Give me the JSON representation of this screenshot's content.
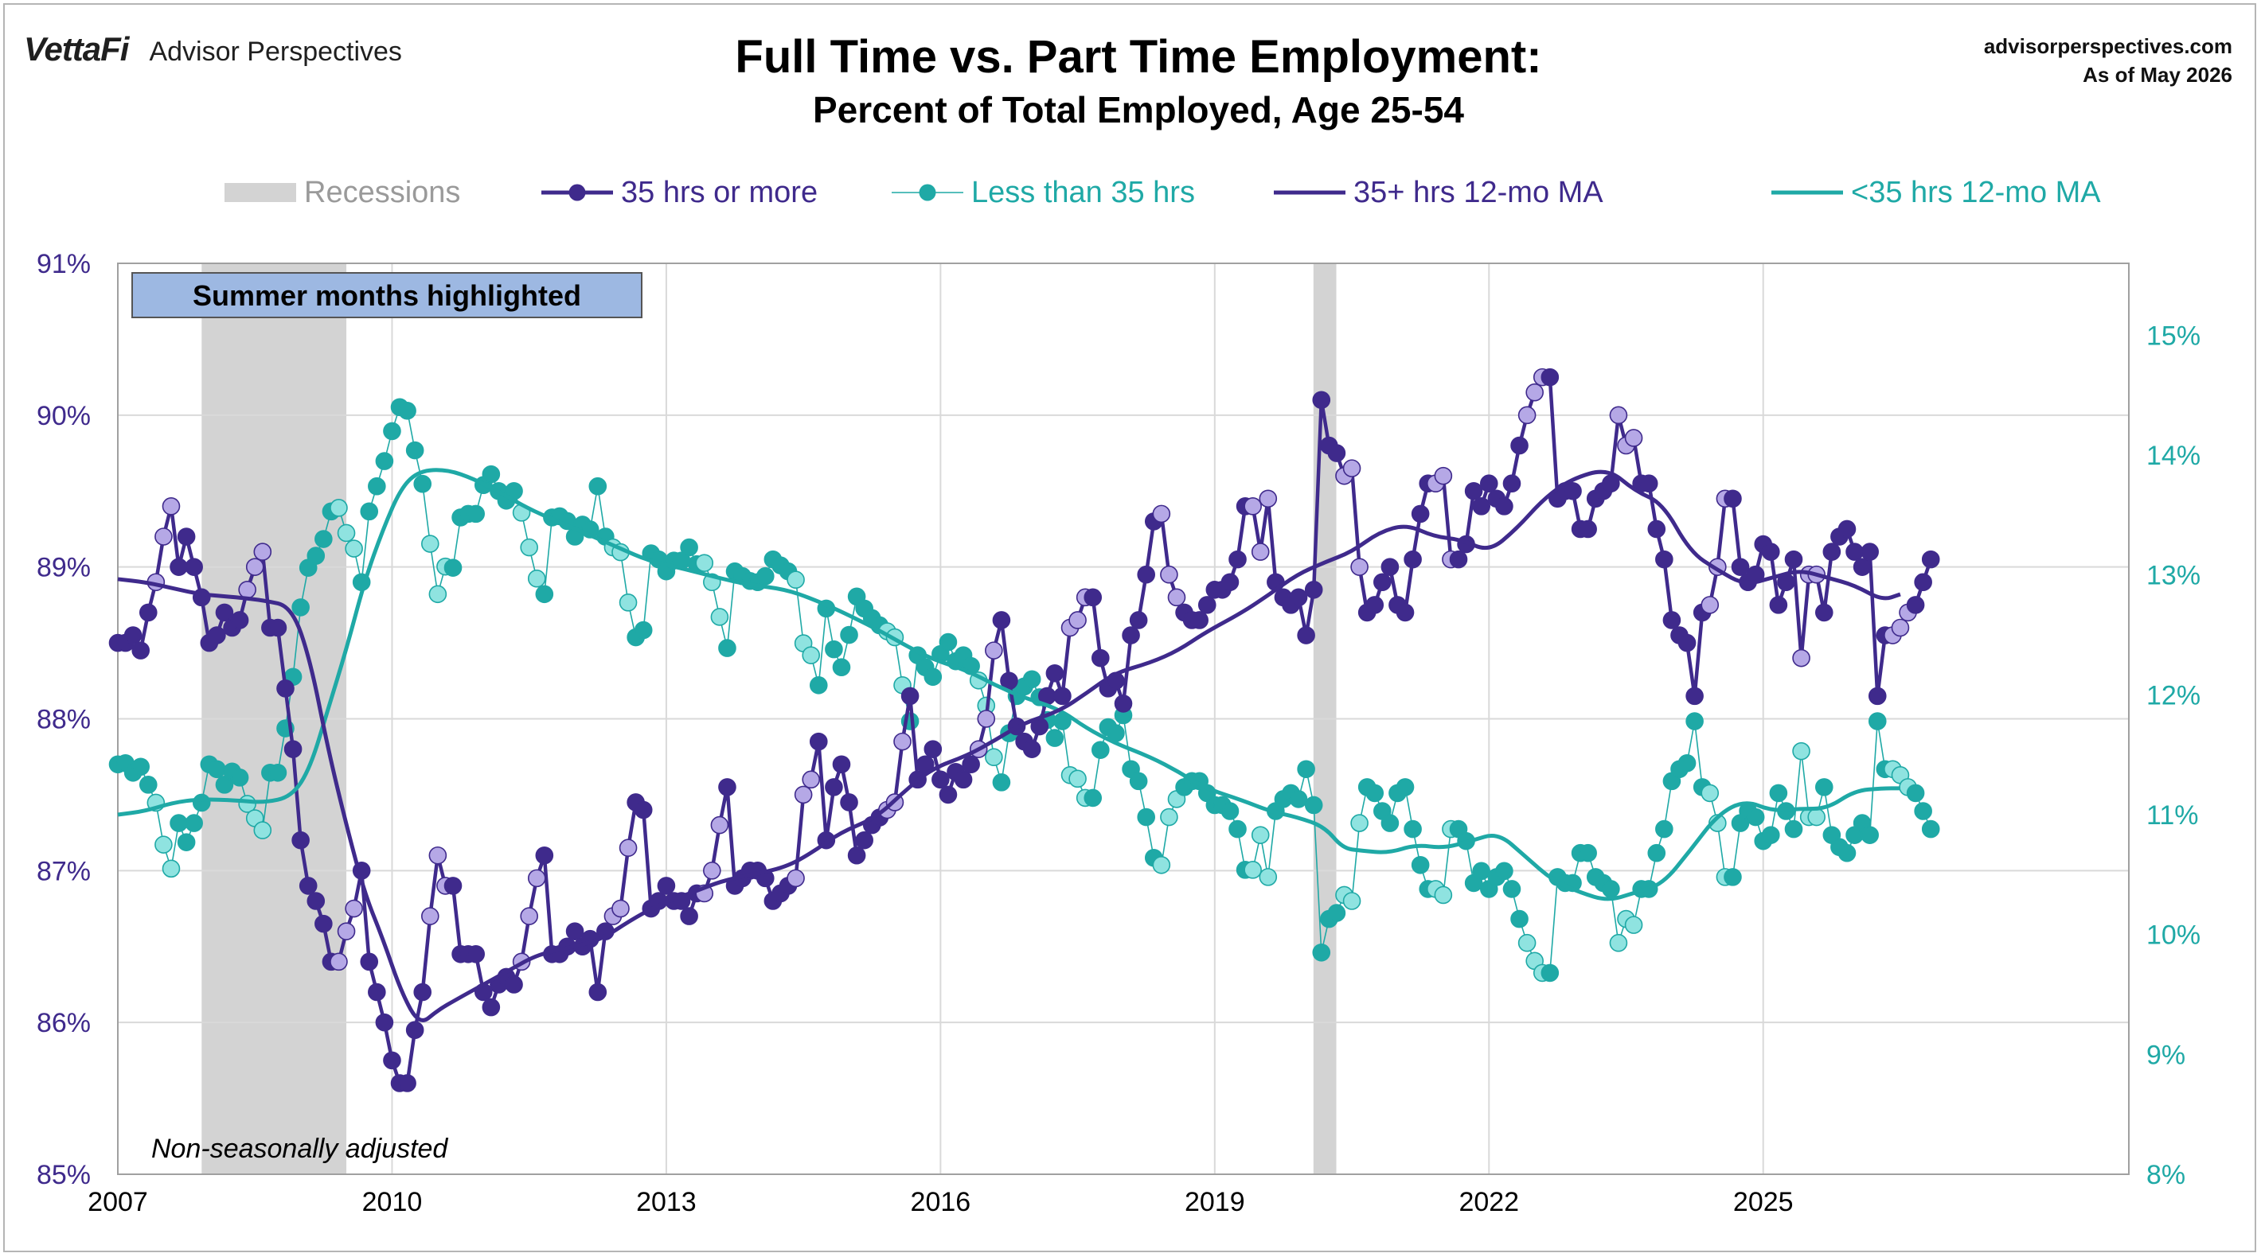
{
  "brand": {
    "logo": "VettaFi",
    "name": "Advisor Perspectives"
  },
  "header": {
    "title": "Full Time vs. Part Time Employment:",
    "subtitle": "Percent of Total Employed, Age 25-54",
    "site": "advisorperspectives.com",
    "as_of": "As of May 2026"
  },
  "colors": {
    "full_time": "#3f2a8c",
    "full_time_summer": "#b5a8e6",
    "part_time": "#1fa9a6",
    "part_time_summer": "#8fe3e0",
    "recession": "#d3d3d3",
    "summer_box": "#9db8e2",
    "grid": "#d9d9d9"
  },
  "annotations": {
    "summer_box": "Summer months highlighted",
    "note": "Non-seasonally adjusted"
  },
  "chart_data": {
    "type": "line",
    "legend": [
      {
        "label": "Recessions",
        "kind": "band"
      },
      {
        "label": "35 hrs or more",
        "kind": "marker-line",
        "series": "full"
      },
      {
        "label": "Less than 35 hrs",
        "kind": "marker-line",
        "series": "part"
      },
      {
        "label": "35+ hrs 12-mo MA",
        "kind": "line",
        "series": "full_ma"
      },
      {
        "label": "<35 hrs 12-mo MA",
        "kind": "line",
        "series": "part_ma"
      }
    ],
    "legend_position": "top",
    "x_axis": {
      "range": [
        2007,
        2029
      ],
      "ticks": [
        "2007",
        "2010",
        "2013",
        "2016",
        "2019",
        "2022",
        "2025"
      ]
    },
    "y_left": {
      "range": [
        85,
        91
      ],
      "ticks": [
        "85%",
        "86%",
        "87%",
        "88%",
        "89%",
        "90%",
        "91%"
      ]
    },
    "y_right": {
      "range": [
        8,
        15.6
      ],
      "ticks": [
        "8%",
        "9%",
        "10%",
        "11%",
        "12%",
        "13%",
        "14%",
        "15%"
      ]
    },
    "recessions": [
      [
        2007.917,
        2009.5
      ],
      [
        2020.08,
        2020.33
      ]
    ],
    "summer_months": [
      6,
      7,
      8
    ],
    "series": [
      {
        "name": "35 hrs or more",
        "axis": "left",
        "x_start": 2007.0,
        "step_months": 1,
        "values": [
          88.5,
          88.5,
          88.55,
          88.45,
          88.7,
          88.9,
          89.2,
          89.4,
          89.0,
          89.2,
          89.0,
          88.8,
          88.5,
          88.55,
          88.7,
          88.6,
          88.65,
          88.85,
          89.0,
          89.1,
          88.6,
          88.6,
          88.2,
          87.8,
          87.2,
          86.9,
          86.8,
          86.65,
          86.4,
          86.4,
          86.6,
          86.75,
          87.0,
          86.4,
          86.2,
          86.0,
          85.75,
          85.6,
          85.6,
          85.95,
          86.2,
          86.7,
          87.1,
          86.9,
          86.9,
          86.45,
          86.45,
          86.45,
          86.2,
          86.1,
          86.25,
          86.3,
          86.25,
          86.4,
          86.7,
          86.95,
          87.1,
          86.45,
          86.45,
          86.5,
          86.6,
          86.5,
          86.55,
          86.2,
          86.6,
          86.7,
          86.75,
          87.15,
          87.45,
          87.4,
          86.75,
          86.8,
          86.9,
          86.8,
          86.8,
          86.7,
          86.85,
          86.85,
          87.0,
          87.3,
          87.55,
          86.9,
          86.95,
          87.0,
          87.0,
          86.95,
          86.8,
          86.85,
          86.9,
          86.95,
          87.5,
          87.6,
          87.85,
          87.2,
          87.55,
          87.7,
          87.45,
          87.1,
          87.2,
          87.3,
          87.35,
          87.4,
          87.45,
          87.85,
          88.15,
          87.6,
          87.7,
          87.8,
          87.6,
          87.5,
          87.65,
          87.6,
          87.7,
          87.8,
          88.0,
          88.45,
          88.65,
          88.25,
          87.95,
          87.85,
          87.8,
          87.95,
          88.15,
          88.3,
          88.15,
          88.6,
          88.65,
          88.8,
          88.8,
          88.4,
          88.2,
          88.25,
          88.1,
          88.55,
          88.65,
          88.95,
          89.3,
          89.35,
          88.95,
          88.8,
          88.7,
          88.65,
          88.65,
          88.75,
          88.85,
          88.85,
          88.9,
          89.05,
          89.4,
          89.4,
          89.1,
          89.45,
          88.9,
          88.8,
          88.75,
          88.8,
          88.55,
          88.85,
          90.1,
          89.8,
          89.75,
          89.6,
          89.65,
          89.0,
          88.7,
          88.75,
          88.9,
          89.0,
          88.75,
          88.7,
          89.05,
          89.35,
          89.55,
          89.55,
          89.6,
          89.05,
          89.05,
          89.15,
          89.5,
          89.4,
          89.55,
          89.45,
          89.4,
          89.55,
          89.8,
          90.0,
          90.15,
          90.25,
          90.25,
          89.45,
          89.5,
          89.5,
          89.25,
          89.25,
          89.45,
          89.5,
          89.55,
          90.0,
          89.8,
          89.85,
          89.55,
          89.55,
          89.25,
          89.05,
          88.65,
          88.55,
          88.5,
          88.15,
          88.7,
          88.75,
          89.0,
          89.45,
          89.45,
          89.0,
          88.9,
          88.95,
          89.15,
          89.1,
          88.75,
          88.9,
          89.05,
          88.4,
          88.95,
          88.95,
          88.7,
          89.1,
          89.2,
          89.25,
          89.1,
          89.0,
          89.1,
          88.15,
          88.55,
          88.55,
          88.6,
          88.7,
          88.75,
          88.9,
          89.05
        ]
      },
      {
        "name": "Less than 35 hrs",
        "axis": "left",
        "x_start": 2007.0,
        "step_months": 1,
        "values": [
          11.42,
          11.43,
          11.35,
          11.4,
          11.25,
          11.1,
          10.75,
          10.55,
          10.93,
          10.77,
          10.93,
          11.1,
          11.42,
          11.38,
          11.25,
          11.36,
          11.31,
          11.09,
          10.97,
          10.87,
          11.35,
          11.35,
          11.72,
          12.15,
          12.73,
          13.06,
          13.16,
          13.3,
          13.53,
          13.56,
          13.35,
          13.22,
          12.94,
          13.53,
          13.74,
          13.95,
          14.2,
          14.4,
          14.37,
          14.04,
          13.76,
          13.26,
          12.84,
          13.07,
          13.06,
          13.48,
          13.51,
          13.51,
          13.75,
          13.84,
          13.7,
          13.62,
          13.7,
          13.52,
          13.23,
          12.97,
          12.84,
          13.48,
          13.49,
          13.45,
          13.32,
          13.42,
          13.38,
          13.74,
          13.32,
          13.23,
          13.19,
          12.77,
          12.48,
          12.54,
          13.18,
          13.13,
          13.03,
          13.12,
          13.12,
          13.23,
          13.09,
          13.1,
          12.94,
          12.65,
          12.39,
          13.03,
          12.99,
          12.95,
          12.94,
          12.99,
          13.13,
          13.08,
          13.03,
          12.96,
          12.43,
          12.33,
          12.08,
          12.72,
          12.38,
          12.23,
          12.5,
          12.82,
          12.72,
          12.64,
          12.58,
          12.53,
          12.48,
          12.08,
          11.78,
          12.33,
          12.23,
          12.15,
          12.34,
          12.44,
          12.28,
          12.33,
          12.24,
          12.12,
          11.91,
          11.48,
          11.27,
          11.68,
          11.99,
          12.07,
          12.13,
          11.98,
          11.79,
          11.64,
          11.78,
          11.33,
          11.3,
          11.14,
          11.14,
          11.54,
          11.73,
          11.68,
          11.83,
          11.38,
          11.28,
          10.98,
          10.64,
          10.58,
          10.98,
          11.13,
          11.23,
          11.28,
          11.28,
          11.18,
          11.08,
          11.08,
          11.03,
          10.88,
          10.54,
          10.54,
          10.83,
          10.48,
          11.03,
          11.13,
          11.18,
          11.13,
          11.38,
          11.08,
          9.85,
          10.13,
          10.18,
          10.33,
          10.28,
          10.93,
          11.23,
          11.18,
          11.03,
          10.93,
          11.18,
          11.23,
          10.88,
          10.58,
          10.38,
          10.38,
          10.33,
          10.88,
          10.88,
          10.78,
          10.43,
          10.53,
          10.38,
          10.48,
          10.53,
          10.38,
          10.13,
          9.93,
          9.78,
          9.68,
          9.68,
          10.48,
          10.43,
          10.43,
          10.68,
          10.68,
          10.48,
          10.43,
          10.38,
          9.93,
          10.13,
          10.08,
          10.38,
          10.38,
          10.68,
          10.88,
          11.28,
          11.38,
          11.43,
          11.78,
          11.23,
          11.18,
          10.93,
          10.48,
          10.48,
          10.93,
          11.03,
          10.98,
          10.78,
          10.83,
          11.18,
          11.03,
          10.88,
          11.53,
          10.98,
          10.98,
          11.23,
          10.83,
          10.73,
          10.68,
          10.83,
          10.93,
          10.83,
          11.78,
          11.38,
          11.38,
          11.33,
          11.23,
          11.18,
          11.03,
          10.88
        ]
      },
      {
        "name": "35+ hrs 12-mo MA",
        "axis": "left",
        "points": [
          [
            2007.0,
            88.92
          ],
          [
            2007.3,
            88.9
          ],
          [
            2007.6,
            88.86
          ],
          [
            2007.9,
            88.82
          ],
          [
            2008.3,
            88.8
          ],
          [
            2008.6,
            88.78
          ],
          [
            2008.9,
            88.74
          ],
          [
            2009.1,
            88.4
          ],
          [
            2009.3,
            87.8
          ],
          [
            2009.5,
            87.3
          ],
          [
            2009.7,
            86.85
          ],
          [
            2009.9,
            86.55
          ],
          [
            2010.1,
            86.2
          ],
          [
            2010.3,
            85.98
          ],
          [
            2010.5,
            86.08
          ],
          [
            2010.7,
            86.15
          ],
          [
            2011.0,
            86.25
          ],
          [
            2011.3,
            86.35
          ],
          [
            2011.6,
            86.45
          ],
          [
            2012.0,
            86.5
          ],
          [
            2012.3,
            86.55
          ],
          [
            2012.6,
            86.67
          ],
          [
            2012.9,
            86.77
          ],
          [
            2013.3,
            86.86
          ],
          [
            2013.6,
            86.93
          ],
          [
            2013.9,
            86.97
          ],
          [
            2014.3,
            87.02
          ],
          [
            2014.6,
            87.12
          ],
          [
            2014.9,
            87.25
          ],
          [
            2015.3,
            87.35
          ],
          [
            2015.6,
            87.52
          ],
          [
            2015.9,
            87.67
          ],
          [
            2016.3,
            87.76
          ],
          [
            2016.6,
            87.86
          ],
          [
            2016.9,
            87.97
          ],
          [
            2017.3,
            88.05
          ],
          [
            2017.6,
            88.17
          ],
          [
            2017.9,
            88.3
          ],
          [
            2018.3,
            88.37
          ],
          [
            2018.6,
            88.45
          ],
          [
            2018.9,
            88.57
          ],
          [
            2019.3,
            88.7
          ],
          [
            2019.6,
            88.82
          ],
          [
            2019.9,
            88.95
          ],
          [
            2020.2,
            89.03
          ],
          [
            2020.5,
            89.1
          ],
          [
            2020.8,
            89.23
          ],
          [
            2021.1,
            89.28
          ],
          [
            2021.4,
            89.2
          ],
          [
            2021.7,
            89.18
          ],
          [
            2022.0,
            89.1
          ],
          [
            2022.3,
            89.25
          ],
          [
            2022.6,
            89.45
          ],
          [
            2022.9,
            89.58
          ],
          [
            2023.3,
            89.65
          ],
          [
            2023.6,
            89.5
          ],
          [
            2023.9,
            89.42
          ],
          [
            2024.2,
            89.1
          ],
          [
            2024.5,
            88.98
          ],
          [
            2024.8,
            88.88
          ],
          [
            2025.1,
            88.93
          ],
          [
            2025.4,
            88.98
          ],
          [
            2025.7,
            88.93
          ],
          [
            2026.0,
            88.88
          ],
          [
            2026.3,
            88.78
          ],
          [
            2026.5,
            88.82
          ]
        ]
      },
      {
        "name": "<35 hrs 12-mo MA",
        "axis": "left",
        "points": [
          [
            2007.0,
            11.0
          ],
          [
            2007.3,
            11.03
          ],
          [
            2007.6,
            11.1
          ],
          [
            2007.9,
            11.13
          ],
          [
            2008.3,
            11.12
          ],
          [
            2008.6,
            11.1
          ],
          [
            2008.9,
            11.15
          ],
          [
            2009.1,
            11.38
          ],
          [
            2009.3,
            11.88
          ],
          [
            2009.5,
            12.38
          ],
          [
            2009.7,
            12.95
          ],
          [
            2009.9,
            13.38
          ],
          [
            2010.1,
            13.73
          ],
          [
            2010.3,
            13.87
          ],
          [
            2010.6,
            13.88
          ],
          [
            2010.9,
            13.8
          ],
          [
            2011.2,
            13.68
          ],
          [
            2011.5,
            13.55
          ],
          [
            2011.8,
            13.45
          ],
          [
            2012.2,
            13.32
          ],
          [
            2012.5,
            13.22
          ],
          [
            2012.8,
            13.12
          ],
          [
            2013.2,
            13.05
          ],
          [
            2013.6,
            12.97
          ],
          [
            2013.9,
            12.92
          ],
          [
            2014.3,
            12.88
          ],
          [
            2014.6,
            12.8
          ],
          [
            2014.9,
            12.7
          ],
          [
            2015.3,
            12.55
          ],
          [
            2015.6,
            12.42
          ],
          [
            2015.9,
            12.3
          ],
          [
            2016.3,
            12.2
          ],
          [
            2016.6,
            12.08
          ],
          [
            2016.9,
            11.98
          ],
          [
            2017.3,
            11.88
          ],
          [
            2017.6,
            11.72
          ],
          [
            2017.9,
            11.6
          ],
          [
            2018.3,
            11.48
          ],
          [
            2018.6,
            11.36
          ],
          [
            2018.9,
            11.22
          ],
          [
            2019.3,
            11.12
          ],
          [
            2019.6,
            11.03
          ],
          [
            2019.9,
            10.98
          ],
          [
            2020.2,
            10.9
          ],
          [
            2020.4,
            10.72
          ],
          [
            2020.6,
            10.7
          ],
          [
            2020.9,
            10.68
          ],
          [
            2021.2,
            10.75
          ],
          [
            2021.5,
            10.72
          ],
          [
            2021.8,
            10.78
          ],
          [
            2022.1,
            10.85
          ],
          [
            2022.4,
            10.65
          ],
          [
            2022.7,
            10.45
          ],
          [
            2023.0,
            10.35
          ],
          [
            2023.3,
            10.28
          ],
          [
            2023.6,
            10.35
          ],
          [
            2023.9,
            10.42
          ],
          [
            2024.2,
            10.7
          ],
          [
            2024.5,
            11.0
          ],
          [
            2024.8,
            11.12
          ],
          [
            2025.1,
            11.03
          ],
          [
            2025.4,
            11.05
          ],
          [
            2025.7,
            11.05
          ],
          [
            2026.0,
            11.2
          ],
          [
            2026.3,
            11.22
          ],
          [
            2026.5,
            11.22
          ]
        ]
      }
    ]
  }
}
